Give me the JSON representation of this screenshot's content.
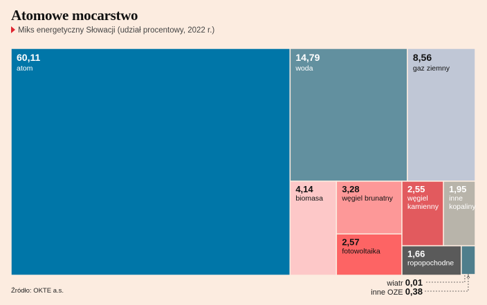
{
  "title": "Atomowe mocarstwo",
  "subtitle": "Miks energetyczny Słowacji (udział procentowy, 2022 r.)",
  "source": "Źródło: OKTE a.s.",
  "chart_data": {
    "type": "treemap",
    "title": "Atomowe mocarstwo",
    "subtitle": "Miks energetyczny Słowacji (udział procentowy, 2022 r.)",
    "items": [
      {
        "value_label": "60,11",
        "name": "atom",
        "value": 60.11,
        "color": "#0076a8"
      },
      {
        "value_label": "14,79",
        "name": "woda",
        "value": 14.79,
        "color": "#62909f"
      },
      {
        "value_label": "8,56",
        "name": "gaz ziemny",
        "value": 8.56,
        "color": "#c0c7d6"
      },
      {
        "value_label": "4,14",
        "name": "biomasa",
        "value": 4.14,
        "color": "#fdc8c8"
      },
      {
        "value_label": "3,28",
        "name": "węgiel brunatny",
        "value": 3.28,
        "color": "#fd9898"
      },
      {
        "value_label": "2,57",
        "name": "fotowoltaika",
        "value": 2.57,
        "color": "#fd6464"
      },
      {
        "value_label": "2,55",
        "name": "węgiel kamienny",
        "value": 2.55,
        "color": "#e25a5e"
      },
      {
        "value_label": "1,95",
        "name": "inne kopaliny",
        "value": 1.95,
        "color": "#b8b4aa"
      },
      {
        "value_label": "1,66",
        "name": "ropopochodne",
        "value": 1.66,
        "color": "#5a5a5a"
      },
      {
        "value_label": "0,01",
        "name": "wiatr",
        "value": 0.01,
        "color": "#4f7e8c"
      },
      {
        "value_label": "0,38",
        "name": "inne OZE",
        "value": 0.38,
        "color": "#4f7e8c"
      }
    ]
  }
}
